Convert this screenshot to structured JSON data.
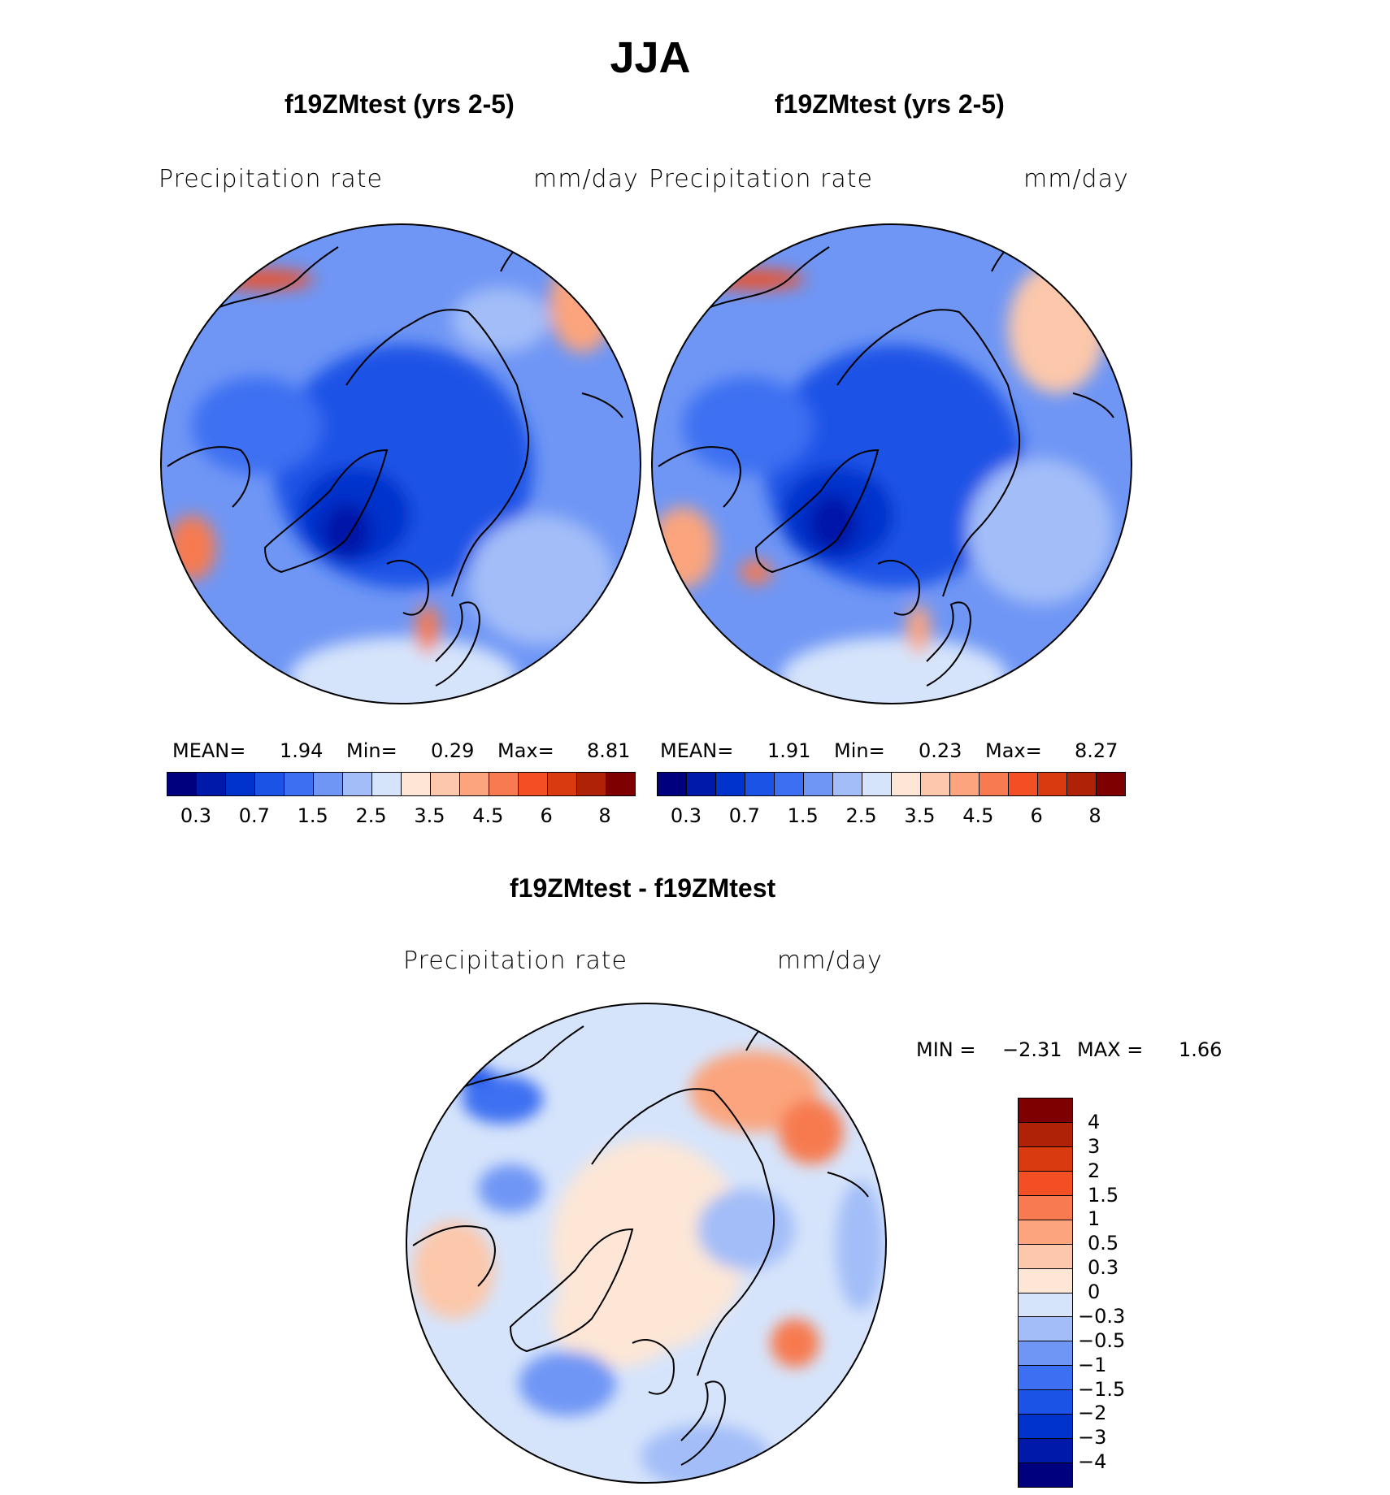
{
  "page_title": "JJA",
  "panels": [
    {
      "title": "f19ZMtest (yrs 2-5)",
      "variable": "Precipitation  rate",
      "units": "mm/day",
      "stats": {
        "mean_label": "MEAN=",
        "mean": "1.94",
        "min_label": "Min=",
        "min": "0.29",
        "max_label": "Max=",
        "max": "8.81"
      }
    },
    {
      "title": "f19ZMtest (yrs 2-5)",
      "variable": "Precipitation  rate",
      "units": "mm/day",
      "stats": {
        "mean_label": "MEAN=",
        "mean": "1.91",
        "min_label": "Min=",
        "min": "0.23",
        "max_label": "Max=",
        "max": "8.27"
      }
    },
    {
      "title": "f19ZMtest - f19ZMtest",
      "variable": "Precipitation  rate",
      "units": "mm/day",
      "stats": {
        "min_label": "MIN =",
        "min": "−2.31",
        "max_label": "MAX =",
        "max": "1.66"
      }
    }
  ],
  "colorbar_abs": {
    "ticks": [
      "0.3",
      "0.7",
      "1.5",
      "2.5",
      "3.5",
      "4.5",
      "6",
      "8"
    ],
    "colors": [
      "#00007f",
      "#0019a8",
      "#0033cc",
      "#1a53e6",
      "#3d6ff2",
      "#6f96f5",
      "#a3bdf8",
      "#d6e4fb",
      "#fde6d6",
      "#fcc7aa",
      "#fba47d",
      "#f77a50",
      "#f25024",
      "#d93a10",
      "#b02208",
      "#7f0000"
    ]
  },
  "colorbar_diff": {
    "ticks": [
      "4",
      "3",
      "2",
      "1.5",
      "1",
      "0.5",
      "0.3",
      "0",
      "−0.3",
      "−0.5",
      "−1",
      "−1.5",
      "−2",
      "−3",
      "−4"
    ],
    "colors": [
      "#7f0000",
      "#b02208",
      "#d93a10",
      "#f25024",
      "#f77a50",
      "#fba47d",
      "#fcc7aa",
      "#fde6d6",
      "#d6e4fb",
      "#a3bdf8",
      "#6f96f5",
      "#3d6ff2",
      "#1a53e6",
      "#0033cc",
      "#0019a8",
      "#00007f"
    ]
  }
}
